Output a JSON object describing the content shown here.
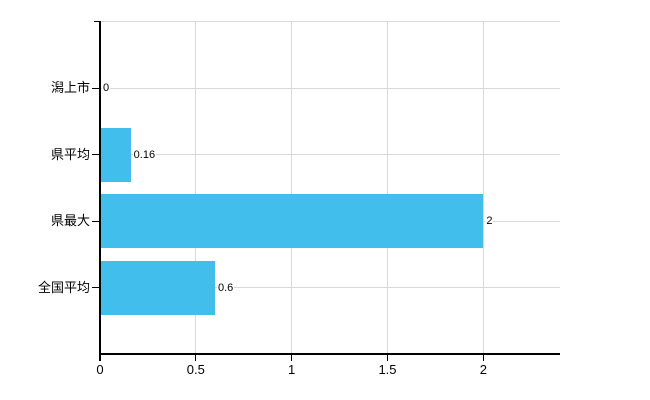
{
  "chart_data": {
    "type": "bar",
    "orientation": "horizontal",
    "categories": [
      "潟上市",
      "県平均",
      "県最大",
      "全国平均"
    ],
    "values": [
      0,
      0.16,
      2,
      0.6
    ],
    "value_labels": [
      "0",
      "0.16",
      "2",
      "0.6"
    ],
    "xticks": [
      0,
      0.5,
      1,
      1.5,
      2
    ],
    "xtick_labels": [
      "0",
      "0.5",
      "1",
      "1.5",
      "2"
    ],
    "xlim": [
      0,
      2.4
    ],
    "grid": true,
    "legend": "none",
    "bar_color": "#41BEEB",
    "gridline_color": "#d9d9d9",
    "axis_color": "#000000",
    "text_color": "#000000",
    "background_color": "#ffffff"
  }
}
